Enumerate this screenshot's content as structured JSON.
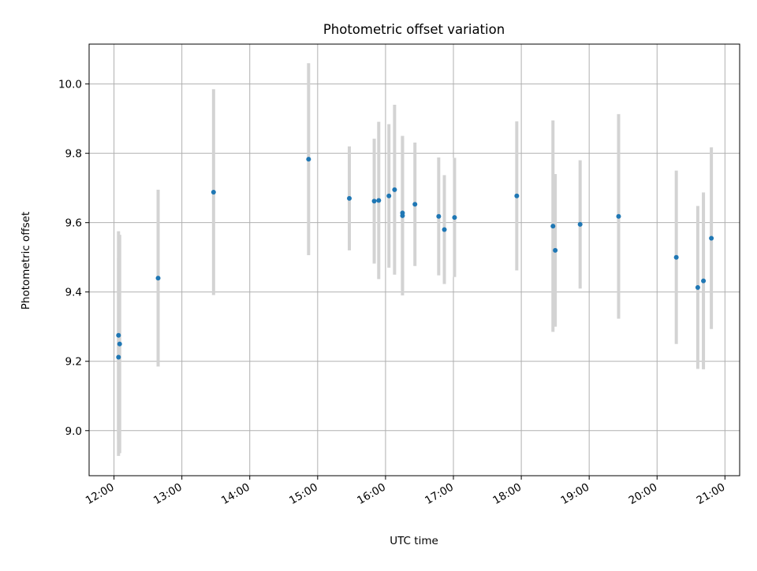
{
  "colors": {
    "point": "#1f77b4",
    "errorbar": "#d3d3d3",
    "grid": "#b0b0b0",
    "axes": "#000000",
    "background": "#ffffff"
  },
  "chart_data": {
    "type": "scatter",
    "title": "Photometric offset variation",
    "xlabel": "UTC time",
    "ylabel": "Photometric offset",
    "x_is_time": true,
    "xlim": [
      "11:38",
      "21:13"
    ],
    "ylim": [
      8.87,
      10.115
    ],
    "x_ticks": [
      "12:00",
      "13:00",
      "14:00",
      "15:00",
      "16:00",
      "17:00",
      "18:00",
      "19:00",
      "20:00",
      "21:00"
    ],
    "y_ticks": [
      "9.0",
      "9.2",
      "9.4",
      "9.6",
      "9.8",
      "10.0"
    ],
    "grid": true,
    "legend": "none",
    "series": [
      {
        "points": [
          {
            "x": "12:04",
            "y": 9.212,
            "err": 0.285
          },
          {
            "x": "12:04",
            "y": 9.275,
            "err": 0.3
          },
          {
            "x": "12:05",
            "y": 9.25,
            "err": 0.315
          },
          {
            "x": "12:39",
            "y": 9.44,
            "err": 0.255
          },
          {
            "x": "13:28",
            "y": 9.688,
            "err": 0.297
          },
          {
            "x": "14:52",
            "y": 9.783,
            "err": 0.277
          },
          {
            "x": "15:28",
            "y": 9.67,
            "err": 0.15
          },
          {
            "x": "15:50",
            "y": 9.662,
            "err": 0.18
          },
          {
            "x": "15:54",
            "y": 9.664,
            "err": 0.227
          },
          {
            "x": "16:03",
            "y": 9.677,
            "err": 0.207
          },
          {
            "x": "16:08",
            "y": 9.695,
            "err": 0.245
          },
          {
            "x": "16:15",
            "y": 9.628,
            "err": 0.222
          },
          {
            "x": "16:15",
            "y": 9.62,
            "err": 0.23
          },
          {
            "x": "16:26",
            "y": 9.653,
            "err": 0.178
          },
          {
            "x": "16:47",
            "y": 9.618,
            "err": 0.17
          },
          {
            "x": "16:52",
            "y": 9.58,
            "err": 0.157
          },
          {
            "x": "17:01",
            "y": 9.615,
            "err": 0.172
          },
          {
            "x": "17:56",
            "y": 9.677,
            "err": 0.215
          },
          {
            "x": "18:28",
            "y": 9.59,
            "err": 0.305
          },
          {
            "x": "18:30",
            "y": 9.52,
            "err": 0.22
          },
          {
            "x": "18:52",
            "y": 9.595,
            "err": 0.185
          },
          {
            "x": "19:26",
            "y": 9.618,
            "err": 0.295
          },
          {
            "x": "20:17",
            "y": 9.5,
            "err": 0.25
          },
          {
            "x": "20:36",
            "y": 9.413,
            "err": 0.235
          },
          {
            "x": "20:41",
            "y": 9.432,
            "err": 0.255
          },
          {
            "x": "20:48",
            "y": 9.555,
            "err": 0.262
          }
        ]
      }
    ]
  }
}
